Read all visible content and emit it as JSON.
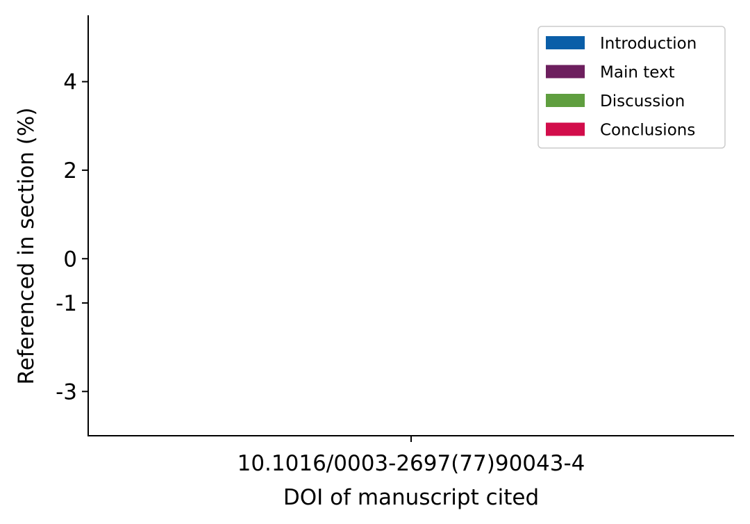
{
  "chart_data": {
    "type": "bar",
    "categories": [
      "10.1016/0003-2697(77)90043-4"
    ],
    "series": [
      {
        "name": "Introduction",
        "color": "#0a5ea8",
        "values": [
          0
        ]
      },
      {
        "name": "Main text",
        "color": "#6d1f5e",
        "values": [
          0
        ]
      },
      {
        "name": "Discussion",
        "color": "#5f9e3f",
        "values": [
          0
        ]
      },
      {
        "name": "Conclusions",
        "color": "#d20d4b",
        "values": [
          0
        ]
      }
    ],
    "xlabel": "DOI of manuscript cited",
    "ylabel": "Referenced in section (%)",
    "yticks": [
      4,
      2,
      0,
      -1,
      -3
    ],
    "ytick_labels": [
      "4",
      "2",
      "0",
      "-1",
      "-3"
    ],
    "ylim": [
      -4.0,
      5.5
    ],
    "grid": false,
    "legend_position": "top-right"
  }
}
